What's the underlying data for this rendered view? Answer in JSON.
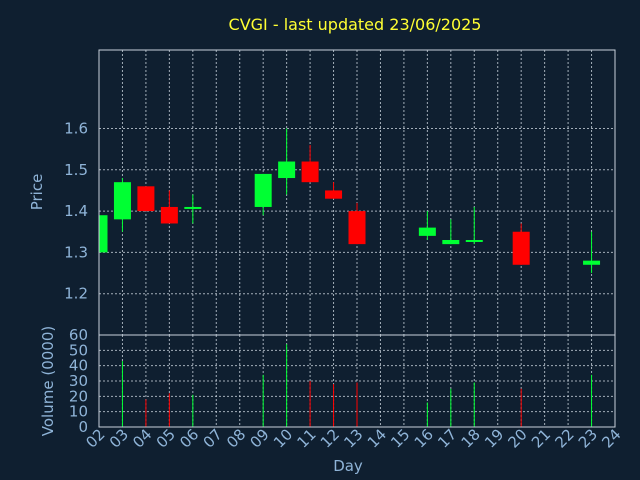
{
  "title": "CVGI - last updated 23/06/2025",
  "chart_data": {
    "type": "candlestick",
    "xlabel": "Day",
    "price_ylabel": "Price",
    "volume_ylabel": "Volume (0000)",
    "x_ticks": [
      "02",
      "03",
      "04",
      "05",
      "06",
      "07",
      "08",
      "09",
      "10",
      "11",
      "12",
      "13",
      "14",
      "15",
      "16",
      "17",
      "18",
      "19",
      "20",
      "21",
      "22",
      "23",
      "24"
    ],
    "price_ticks": [
      1.2,
      1.3,
      1.4,
      1.5,
      1.6
    ],
    "price_ylim": [
      1.1,
      1.79
    ],
    "volume_ticks": [
      0,
      10,
      20,
      30,
      40,
      50,
      60
    ],
    "volume_ylim": [
      0,
      60
    ],
    "up_color": "#00ff33",
    "down_color": "#ff0000",
    "grid": true,
    "candles": [
      {
        "day": 2,
        "open": 1.3,
        "high": 1.39,
        "low": 1.3,
        "close": 1.39,
        "volume": 0
      },
      {
        "day": 3,
        "open": 1.38,
        "high": 1.48,
        "low": 1.35,
        "close": 1.47,
        "volume": 43
      },
      {
        "day": 4,
        "open": 1.46,
        "high": 1.46,
        "low": 1.4,
        "close": 1.4,
        "volume": 18
      },
      {
        "day": 5,
        "open": 1.41,
        "high": 1.45,
        "low": 1.37,
        "close": 1.37,
        "volume": 22
      },
      {
        "day": 6,
        "open": 1.41,
        "high": 1.44,
        "low": 1.37,
        "close": 1.41,
        "volume": 21
      },
      {
        "day": 9,
        "open": 1.41,
        "high": 1.49,
        "low": 1.39,
        "close": 1.49,
        "volume": 34
      },
      {
        "day": 10,
        "open": 1.48,
        "high": 1.6,
        "low": 1.44,
        "close": 1.52,
        "volume": 54
      },
      {
        "day": 11,
        "open": 1.52,
        "high": 1.56,
        "low": 1.47,
        "close": 1.47,
        "volume": 30
      },
      {
        "day": 12,
        "open": 1.45,
        "high": 1.47,
        "low": 1.43,
        "close": 1.43,
        "volume": 28
      },
      {
        "day": 13,
        "open": 1.4,
        "high": 1.42,
        "low": 1.32,
        "close": 1.32,
        "volume": 29
      },
      {
        "day": 16,
        "open": 1.34,
        "high": 1.4,
        "low": 1.33,
        "close": 1.36,
        "volume": 16
      },
      {
        "day": 17,
        "open": 1.32,
        "high": 1.38,
        "low": 1.32,
        "close": 1.33,
        "volume": 25
      },
      {
        "day": 18,
        "open": 1.33,
        "high": 1.41,
        "low": 1.32,
        "close": 1.33,
        "volume": 29
      },
      {
        "day": 20,
        "open": 1.35,
        "high": 1.37,
        "low": 1.27,
        "close": 1.27,
        "volume": 25
      },
      {
        "day": 23,
        "open": 1.27,
        "high": 1.35,
        "low": 1.25,
        "close": 1.28,
        "volume": 34
      }
    ]
  }
}
